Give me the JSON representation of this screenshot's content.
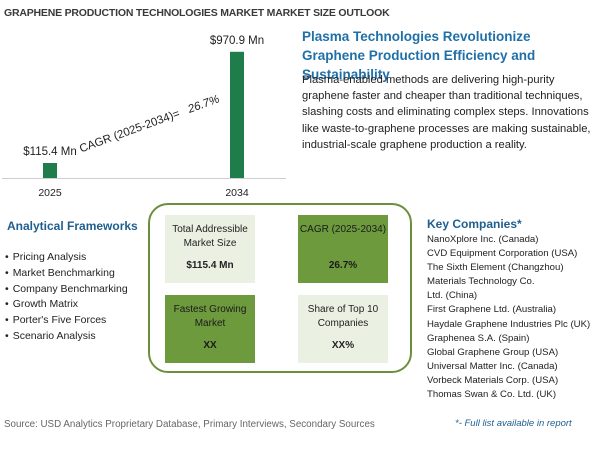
{
  "page_title": "GRAPHENE PRODUCTION TECHNOLOGIES MARKET MARKET SIZE OUTLOOK",
  "chart_data": {
    "type": "bar",
    "categories": [
      "2025",
      "2034"
    ],
    "values": [
      115.4,
      970.9
    ],
    "value_labels": [
      "$115.4 Mn",
      "$970.9 Mn"
    ],
    "ylim": [
      0,
      1000
    ],
    "bar_color": "#1e7d4a",
    "cagr_annotation": {
      "label": "CAGR (2025-2034)=",
      "value": "26.7%"
    }
  },
  "headline": "Plasma Technologies Revolutionize Graphene Production Efficiency and Sustainability",
  "description": "Plasma-enabled methods are delivering high-purity graphene faster and cheaper than traditional techniques, slashing costs and eliminating complex steps. Innovations like waste-to-graphene processes are making sustainable, industrial-scale graphene production a reality.",
  "frameworks": {
    "title": "Analytical Frameworks",
    "items": [
      "Pricing Analysis",
      "Market Benchmarking",
      "Company Benchmarking",
      "Growth Matrix",
      "Porter's Five Forces",
      "Scenario Analysis"
    ]
  },
  "metrics": [
    {
      "label": "Total Addressible Market Size",
      "value": "$115.4 Mn"
    },
    {
      "label": "CAGR (2025-2034)",
      "value": "26.7%"
    },
    {
      "label": "Fastest Growing Market",
      "value": "XX"
    },
    {
      "label": "Share of Top 10 Companies",
      "value": "XX%"
    }
  ],
  "companies": {
    "title": "Key Companies*",
    "items": [
      "NanoXplore Inc. (Canada)",
      "CVD Equipment Corporation (USA)",
      "The Sixth Element (Changzhou) Materials Technology Co.",
      "Ltd. (China)",
      "First Graphene Ltd. (Australia)",
      "Haydale Graphene Industries Plc (UK)",
      "Graphenea S.A. (Spain)",
      "Global Graphene Group (USA)",
      "Universal Matter Inc. (Canada)",
      "Vorbeck Materials Corp. (USA)",
      "Thomas Swan & Co. Ltd. (UK)"
    ],
    "note": "*- Full list available in report"
  },
  "source": "Source: USD Analytics Proprietary Database, Primary Interviews, Secondary Sources",
  "colors": {
    "accent_blue": "#1f6fa8",
    "bar_green": "#1e7d4a",
    "tile_dark": "#6e9a3e",
    "tile_light": "#eaf1e3",
    "frame_green": "#6d8f3c"
  }
}
